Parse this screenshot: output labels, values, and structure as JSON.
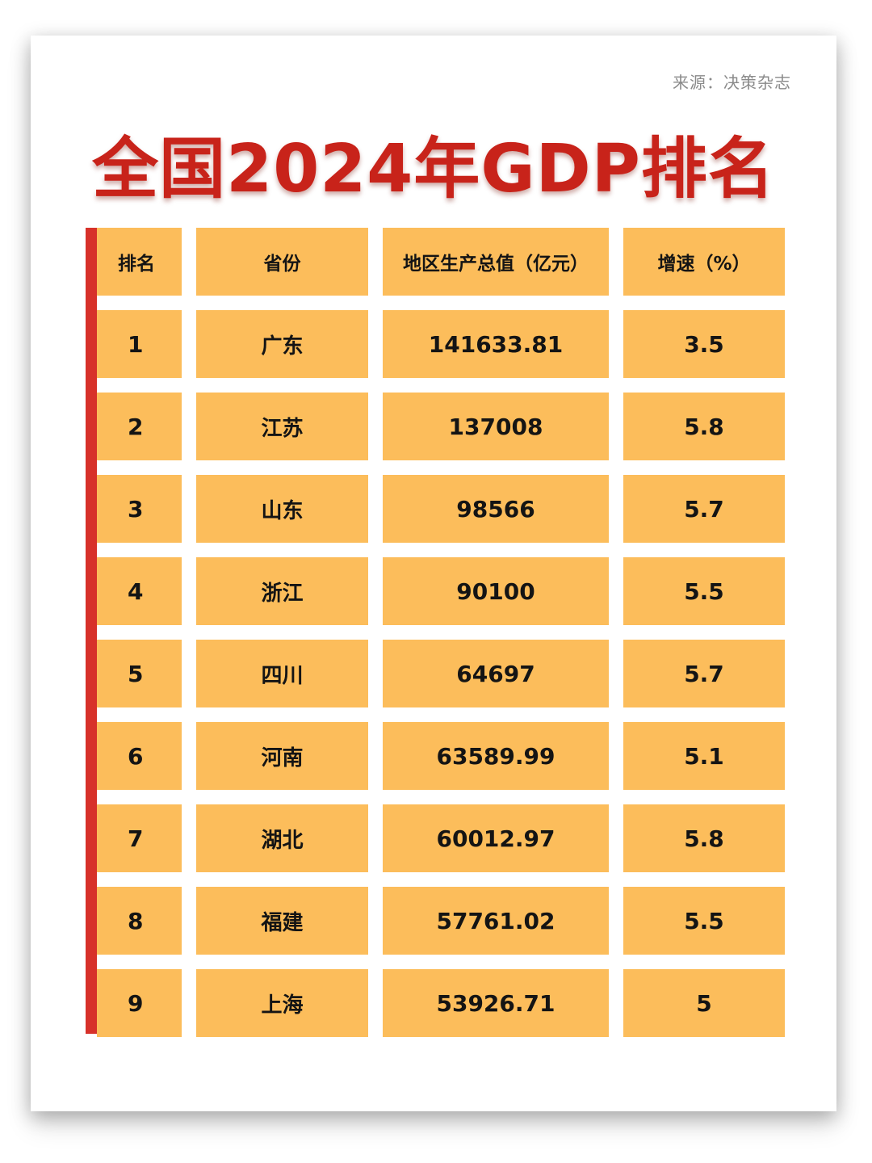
{
  "source": "来源：决策杂志",
  "title": "全国2024年GDP排名",
  "table": {
    "headers": [
      "排名",
      "省份",
      "地区生产总值（亿元）",
      "增速（%）"
    ],
    "rows": [
      [
        "1",
        "广东",
        "141633.81",
        "3.5"
      ],
      [
        "2",
        "江苏",
        "137008",
        "5.8"
      ],
      [
        "3",
        "山东",
        "98566",
        "5.7"
      ],
      [
        "4",
        "浙江",
        "90100",
        "5.5"
      ],
      [
        "5",
        "四川",
        "64697",
        "5.7"
      ],
      [
        "6",
        "河南",
        "63589.99",
        "5.1"
      ],
      [
        "7",
        "湖北",
        "60012.97",
        "5.8"
      ],
      [
        "8",
        "福建",
        "57761.02",
        "5.5"
      ],
      [
        "9",
        "上海",
        "53926.71",
        "5"
      ]
    ]
  },
  "colors": {
    "title": "#c8231a",
    "cell": "#fcbd5b",
    "accent_bar": "#d7312a"
  }
}
